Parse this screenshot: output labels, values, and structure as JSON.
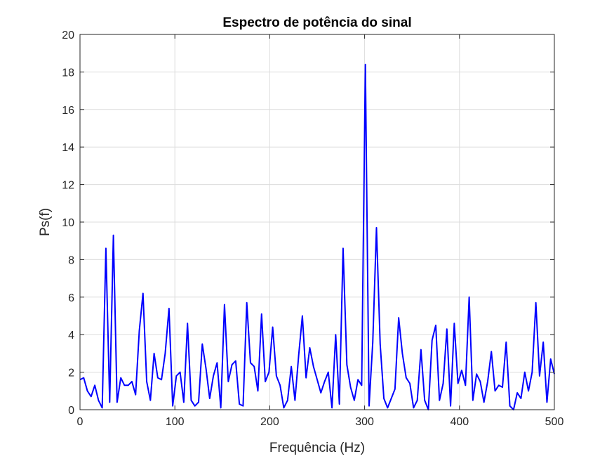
{
  "chart_data": {
    "type": "line",
    "title": "Espectro de potência do sinal",
    "xlabel": "Frequência (Hz)",
    "ylabel": "Ps(f)",
    "xlim": [
      0,
      500
    ],
    "ylim": [
      0,
      20
    ],
    "xticks": [
      0,
      100,
      200,
      300,
      400,
      500
    ],
    "yticks": [
      0,
      2,
      4,
      6,
      8,
      10,
      12,
      14,
      16,
      18,
      20
    ],
    "grid": true,
    "line_color": "#0000ff",
    "series": [
      {
        "x": [
          0,
          3.9,
          7.8,
          11.7,
          15.6,
          19.5,
          23.4,
          27.3,
          31.3,
          35.2,
          39.1,
          43.0,
          46.9,
          50.8,
          54.7,
          58.6,
          62.5,
          66.4,
          70.3,
          74.2,
          78.1,
          82.0,
          85.9,
          89.8,
          93.8,
          97.7,
          101.6,
          105.5,
          109.4,
          113.3,
          117.2,
          121.1,
          125.0,
          128.9,
          132.8,
          136.7,
          140.6,
          144.5,
          148.4,
          152.3,
          156.3,
          160.2,
          164.1,
          168.0,
          171.9,
          175.8,
          179.7,
          183.6,
          187.5,
          191.4,
          195.3,
          199.2,
          203.1,
          207.0,
          210.9,
          214.8,
          218.8,
          222.7,
          226.6,
          230.5,
          234.4,
          238.3,
          242.2,
          246.1,
          250.0,
          253.9,
          257.8,
          261.7,
          265.6,
          269.5,
          273.4,
          277.3,
          281.3,
          285.2,
          289.1,
          293.0,
          296.9,
          300.8,
          304.7,
          308.6,
          312.5,
          316.4,
          320.3,
          324.2,
          328.1,
          332.0,
          335.9,
          339.8,
          343.8,
          347.7,
          351.6,
          355.5,
          359.4,
          363.3,
          367.2,
          371.1,
          375.0,
          378.9,
          382.8,
          386.7,
          390.6,
          394.5,
          398.4,
          402.3,
          406.3,
          410.2,
          414.1,
          418.0,
          421.9,
          425.8,
          429.7,
          433.6,
          437.5,
          441.4,
          445.3,
          449.2,
          453.1,
          457.0,
          460.9,
          464.8,
          468.8,
          472.7,
          476.6,
          480.5,
          484.4,
          488.3,
          492.2,
          496.1,
          500.0
        ],
        "y": [
          1.6,
          1.7,
          1.0,
          0.7,
          1.3,
          0.5,
          0.1,
          8.6,
          0.4,
          9.3,
          0.4,
          1.7,
          1.3,
          1.3,
          1.5,
          0.8,
          4.2,
          6.2,
          1.5,
          0.5,
          3.0,
          1.7,
          1.6,
          3.0,
          5.4,
          0.2,
          1.8,
          2.0,
          0.4,
          4.6,
          0.5,
          0.2,
          0.4,
          3.5,
          2.2,
          0.6,
          1.8,
          2.5,
          0.1,
          5.6,
          1.5,
          2.4,
          2.6,
          0.3,
          0.2,
          5.7,
          2.5,
          2.3,
          1.0,
          5.1,
          1.5,
          2.0,
          4.4,
          1.8,
          1.3,
          0.1,
          0.5,
          2.3,
          0.5,
          2.9,
          5.0,
          1.7,
          3.3,
          2.3,
          1.6,
          0.9,
          1.5,
          2.0,
          0.1,
          4.0,
          0.3,
          8.6,
          2.4,
          1.2,
          0.5,
          1.6,
          1.3,
          18.4,
          0.2,
          3.6,
          9.7,
          3.5,
          0.6,
          0.1,
          0.6,
          1.1,
          4.9,
          3.0,
          1.7,
          1.4,
          0.1,
          0.5,
          3.2,
          0.5,
          0.0,
          3.7,
          4.5,
          0.5,
          1.4,
          4.3,
          0.2,
          4.6,
          1.4,
          2.1,
          1.3,
          6.0,
          0.5,
          1.9,
          1.5,
          0.4,
          1.5,
          3.1,
          1.0,
          1.3,
          1.2,
          3.6,
          0.2,
          0.0,
          0.9,
          0.6,
          2.0,
          1.0,
          2.0,
          5.7,
          1.8,
          3.6,
          0.4,
          2.7,
          1.9
        ]
      }
    ]
  }
}
